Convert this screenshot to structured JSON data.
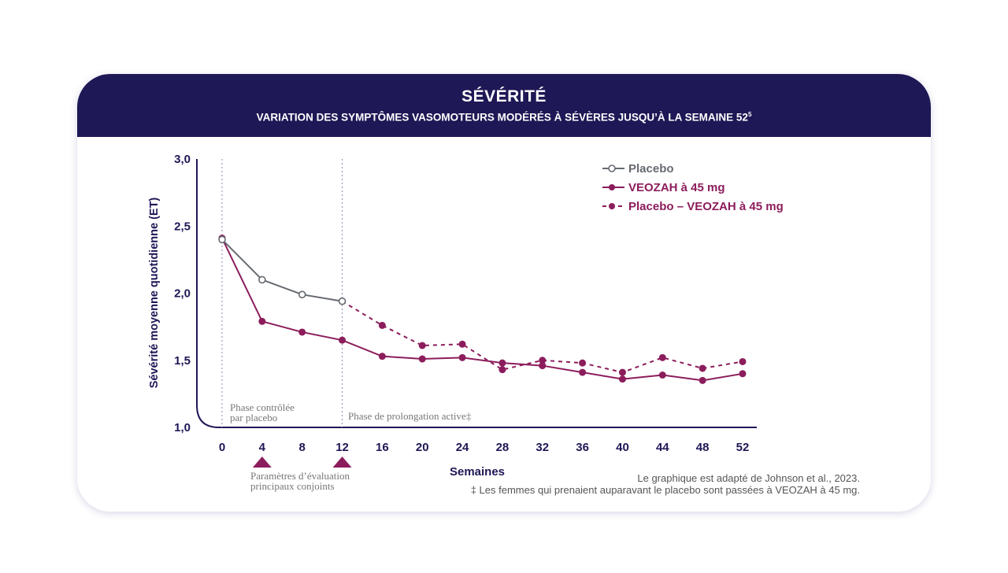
{
  "header": {
    "title": "SÉVÉRITÉ",
    "subtitle": "VARIATION DES SYMPTÔMES VASOMOTEURS MODÉRÉS À SÉVÈRES JUSQU’À LA SEMAINE 52",
    "subtitle_sup": "5"
  },
  "chart_data": {
    "type": "line",
    "xlabel": "Semaines",
    "ylabel": "Sévérité moyenne quotidienne (ET)",
    "ylim": [
      1.0,
      3.0
    ],
    "yticks": [
      "1,0",
      "1,5",
      "2,0",
      "2,5",
      "3,0"
    ],
    "ytick_values": [
      1.0,
      1.5,
      2.0,
      2.5,
      3.0
    ],
    "x": [
      0,
      4,
      8,
      12,
      16,
      20,
      24,
      28,
      32,
      36,
      40,
      44,
      48,
      52
    ],
    "legend_position": "top-right",
    "series": [
      {
        "name": "Placebo",
        "color": "#666a70",
        "style": "solid-open",
        "x": [
          0,
          4,
          8,
          12
        ],
        "values": [
          2.4,
          2.1,
          1.99,
          1.94
        ]
      },
      {
        "name": "VEOZAH à 45 mg",
        "color": "#8c1d5c",
        "style": "solid",
        "x": [
          0,
          4,
          8,
          12,
          16,
          20,
          24,
          28,
          32,
          36,
          40,
          44,
          48,
          52
        ],
        "values": [
          2.41,
          1.79,
          1.71,
          1.65,
          1.53,
          1.51,
          1.52,
          1.48,
          1.46,
          1.41,
          1.36,
          1.39,
          1.35,
          1.4
        ]
      },
      {
        "name": "Placebo – VEOZAH à 45 mg",
        "color": "#8c1d5c",
        "style": "dashed",
        "x": [
          12,
          16,
          20,
          24,
          28,
          32,
          36,
          40,
          44,
          48,
          52
        ],
        "values": [
          1.94,
          1.76,
          1.61,
          1.62,
          1.43,
          1.5,
          1.48,
          1.41,
          1.52,
          1.44,
          1.49
        ]
      }
    ],
    "annotations": {
      "phase1_line1": "Phase contrôlée",
      "phase1_line2": "par placebo",
      "phase2": "Phase de prolongation active‡",
      "endpoint_line1": "Paramètres d’évaluation",
      "endpoint_line2": "principaux conjoints",
      "endpoint_weeks": [
        4,
        12
      ]
    }
  },
  "footnotes": {
    "source": "Le graphique est adapté de Johnson et al., 2023.",
    "dagger": "‡ Les femmes qui prenaient auparavant le placebo sont passées à VEOZAH à 45 mg."
  },
  "colors": {
    "navy": "#1e1856",
    "magenta": "#8c1d5c",
    "grey": "#666a70"
  }
}
